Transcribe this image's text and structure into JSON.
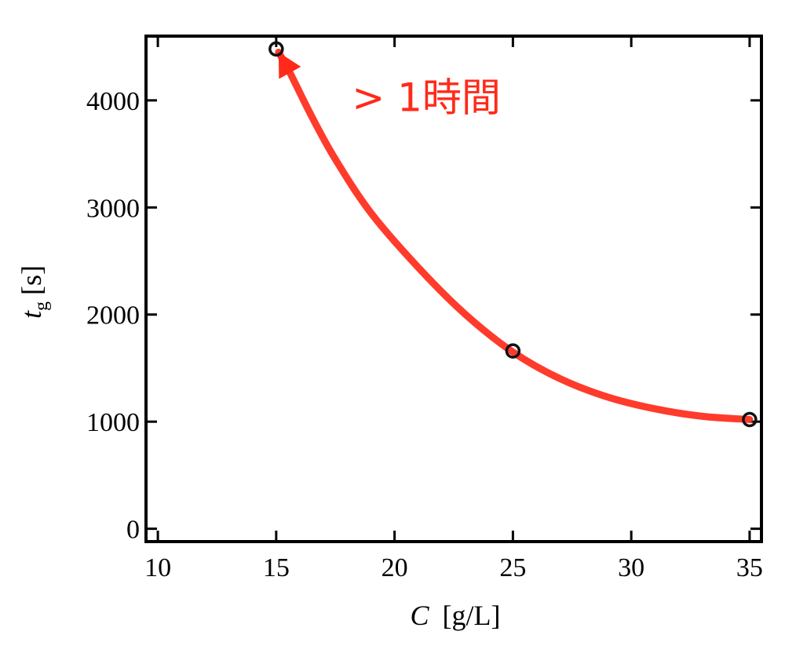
{
  "chart_data": {
    "type": "scatter",
    "xlabel": {
      "symbol": "C",
      "unit": "[g/L]"
    },
    "ylabel": {
      "symbol": "t",
      "subscript": "g",
      "unit": "[s]"
    },
    "xlim": [
      9.5,
      35.5
    ],
    "ylim": [
      -120,
      4600
    ],
    "xticks": [
      10,
      15,
      20,
      25,
      30,
      35
    ],
    "yticks": [
      0,
      1000,
      2000,
      3000,
      4000
    ],
    "points": [
      {
        "x": 15,
        "y": 4480
      },
      {
        "x": 25,
        "y": 1660
      },
      {
        "x": 35,
        "y": 1020
      }
    ],
    "trend_curve": {
      "color": "#ff2a1a",
      "path": [
        [
          35,
          1020
        ],
        [
          33,
          1050
        ],
        [
          31,
          1120
        ],
        [
          29,
          1230
        ],
        [
          27,
          1400
        ],
        [
          25,
          1650
        ],
        [
          23,
          2000
        ],
        [
          21,
          2440
        ],
        [
          19,
          2950
        ],
        [
          17.5,
          3450
        ],
        [
          16.5,
          3850
        ],
        [
          15.6,
          4250
        ],
        [
          15.1,
          4450
        ]
      ]
    },
    "annotation": {
      "text": "> 1時間",
      "x": 18.2,
      "y": 3900,
      "color": "#ff2a1a"
    },
    "grid": false
  }
}
